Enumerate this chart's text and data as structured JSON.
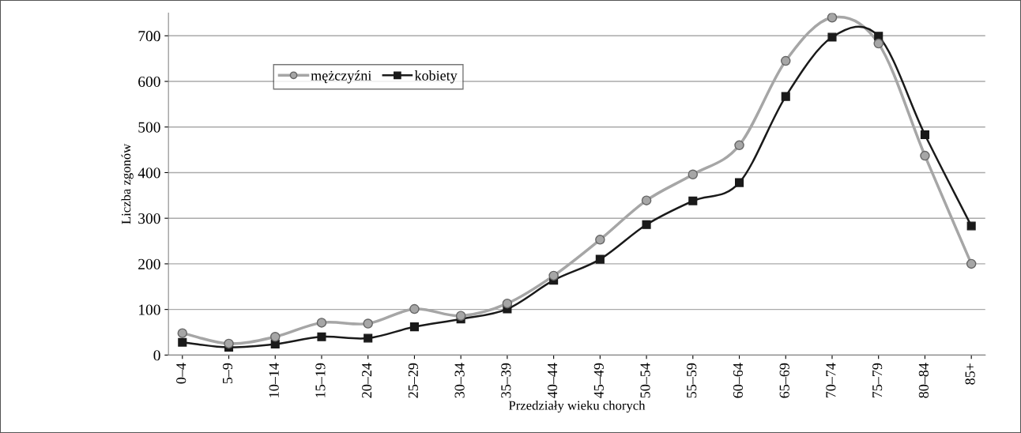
{
  "chart_data": {
    "type": "line",
    "xlabel": "Przedziały wieku chorych",
    "ylabel": "Liczba zgonów",
    "categories": [
      "0–4",
      "5–9",
      "10–14",
      "15–19",
      "20–24",
      "25–29",
      "30–34",
      "35–39",
      "40–44",
      "45–49",
      "50–54",
      "55–59",
      "60–64",
      "65–69",
      "70–74",
      "75–79",
      "80–84",
      "85+"
    ],
    "series": [
      {
        "name": "mężczyźni",
        "color": "#a6a6a6",
        "marker": "circle",
        "values": [
          48,
          25,
          40,
          71,
          69,
          101,
          86,
          113,
          174,
          253,
          339,
          396,
          460,
          645,
          740,
          683,
          437,
          200
        ]
      },
      {
        "name": "kobiety",
        "color": "#1a1a1a",
        "marker": "square",
        "values": [
          28,
          17,
          24,
          40,
          37,
          62,
          79,
          101,
          164,
          210,
          286,
          338,
          378,
          567,
          697,
          699,
          483,
          283
        ]
      }
    ],
    "ylim": [
      0,
      750
    ],
    "yticks": [
      0,
      100,
      200,
      300,
      400,
      500,
      600,
      700
    ],
    "grid": "y",
    "legend": "top left",
    "line_style": "solid"
  }
}
